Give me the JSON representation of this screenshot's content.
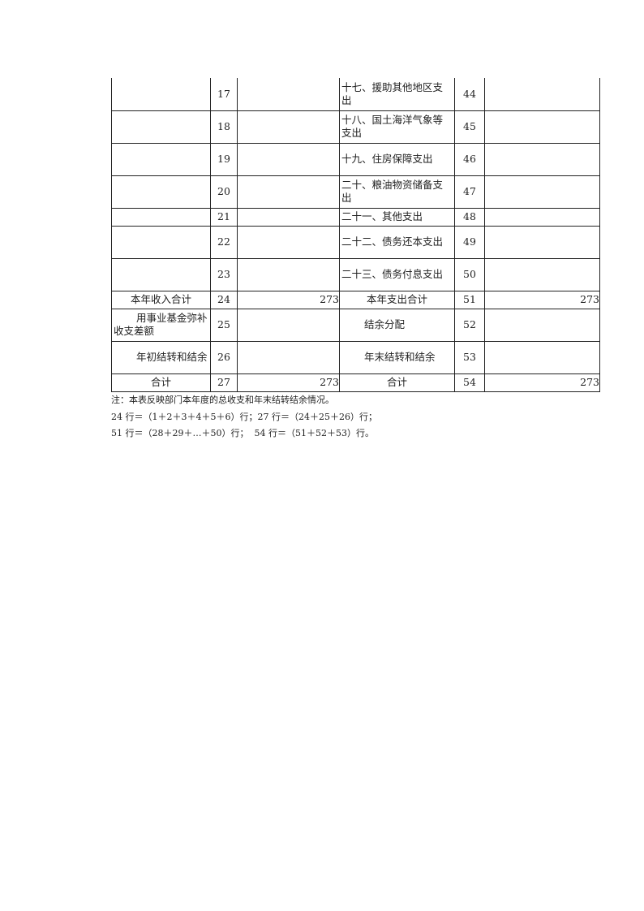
{
  "rows": [
    {
      "left_label": "",
      "left_no": "17",
      "left_amount": "",
      "right_label": "十七、援助其他地区支出",
      "right_no": "44",
      "right_amount": ""
    },
    {
      "left_label": "",
      "left_no": "18",
      "left_amount": "",
      "right_label": "十八、国土海洋气象等支出",
      "right_no": "45",
      "right_amount": ""
    },
    {
      "left_label": "",
      "left_no": "19",
      "left_amount": "",
      "right_label": "十九、住房保障支出",
      "right_no": "46",
      "right_amount": ""
    },
    {
      "left_label": "",
      "left_no": "20",
      "left_amount": "",
      "right_label": "二十、粮油物资储备支出",
      "right_no": "47",
      "right_amount": ""
    },
    {
      "left_label": "",
      "left_no": "21",
      "left_amount": "",
      "right_label": "二十一、其他支出",
      "right_no": "48",
      "right_amount": ""
    },
    {
      "left_label": "",
      "left_no": "22",
      "left_amount": "",
      "right_label": "二十二、债务还本支出",
      "right_no": "49",
      "right_amount": ""
    },
    {
      "left_label": "",
      "left_no": "23",
      "left_amount": "",
      "right_label": "二十三、债务付息支出",
      "right_no": "50",
      "right_amount": ""
    },
    {
      "left_label": "本年收入合计",
      "left_no": "24",
      "left_amount": "273",
      "right_label": "本年支出合计",
      "right_no": "51",
      "right_amount": "273"
    },
    {
      "left_label": "用事业基金弥补收支差额",
      "left_no": "25",
      "left_amount": "",
      "right_label": "结余分配",
      "right_no": "52",
      "right_amount": ""
    },
    {
      "left_label": "年初结转和结余",
      "left_no": "26",
      "left_amount": "",
      "right_label": "年末结转和结余",
      "right_no": "53",
      "right_amount": ""
    },
    {
      "left_label": "合计",
      "left_no": "27",
      "left_amount": "273",
      "right_label": "合计",
      "right_no": "54",
      "right_amount": "273"
    }
  ],
  "notes": [
    "注：本表反映部门本年度的总收支和年末结转结余情况。",
    "24 行＝（1＋2＋3＋4＋5＋6）行；27 行＝（24＋25＋26）行；",
    "51 行＝（28＋29＋…＋50）行；  54 行＝（51＋52＋53）行。"
  ]
}
